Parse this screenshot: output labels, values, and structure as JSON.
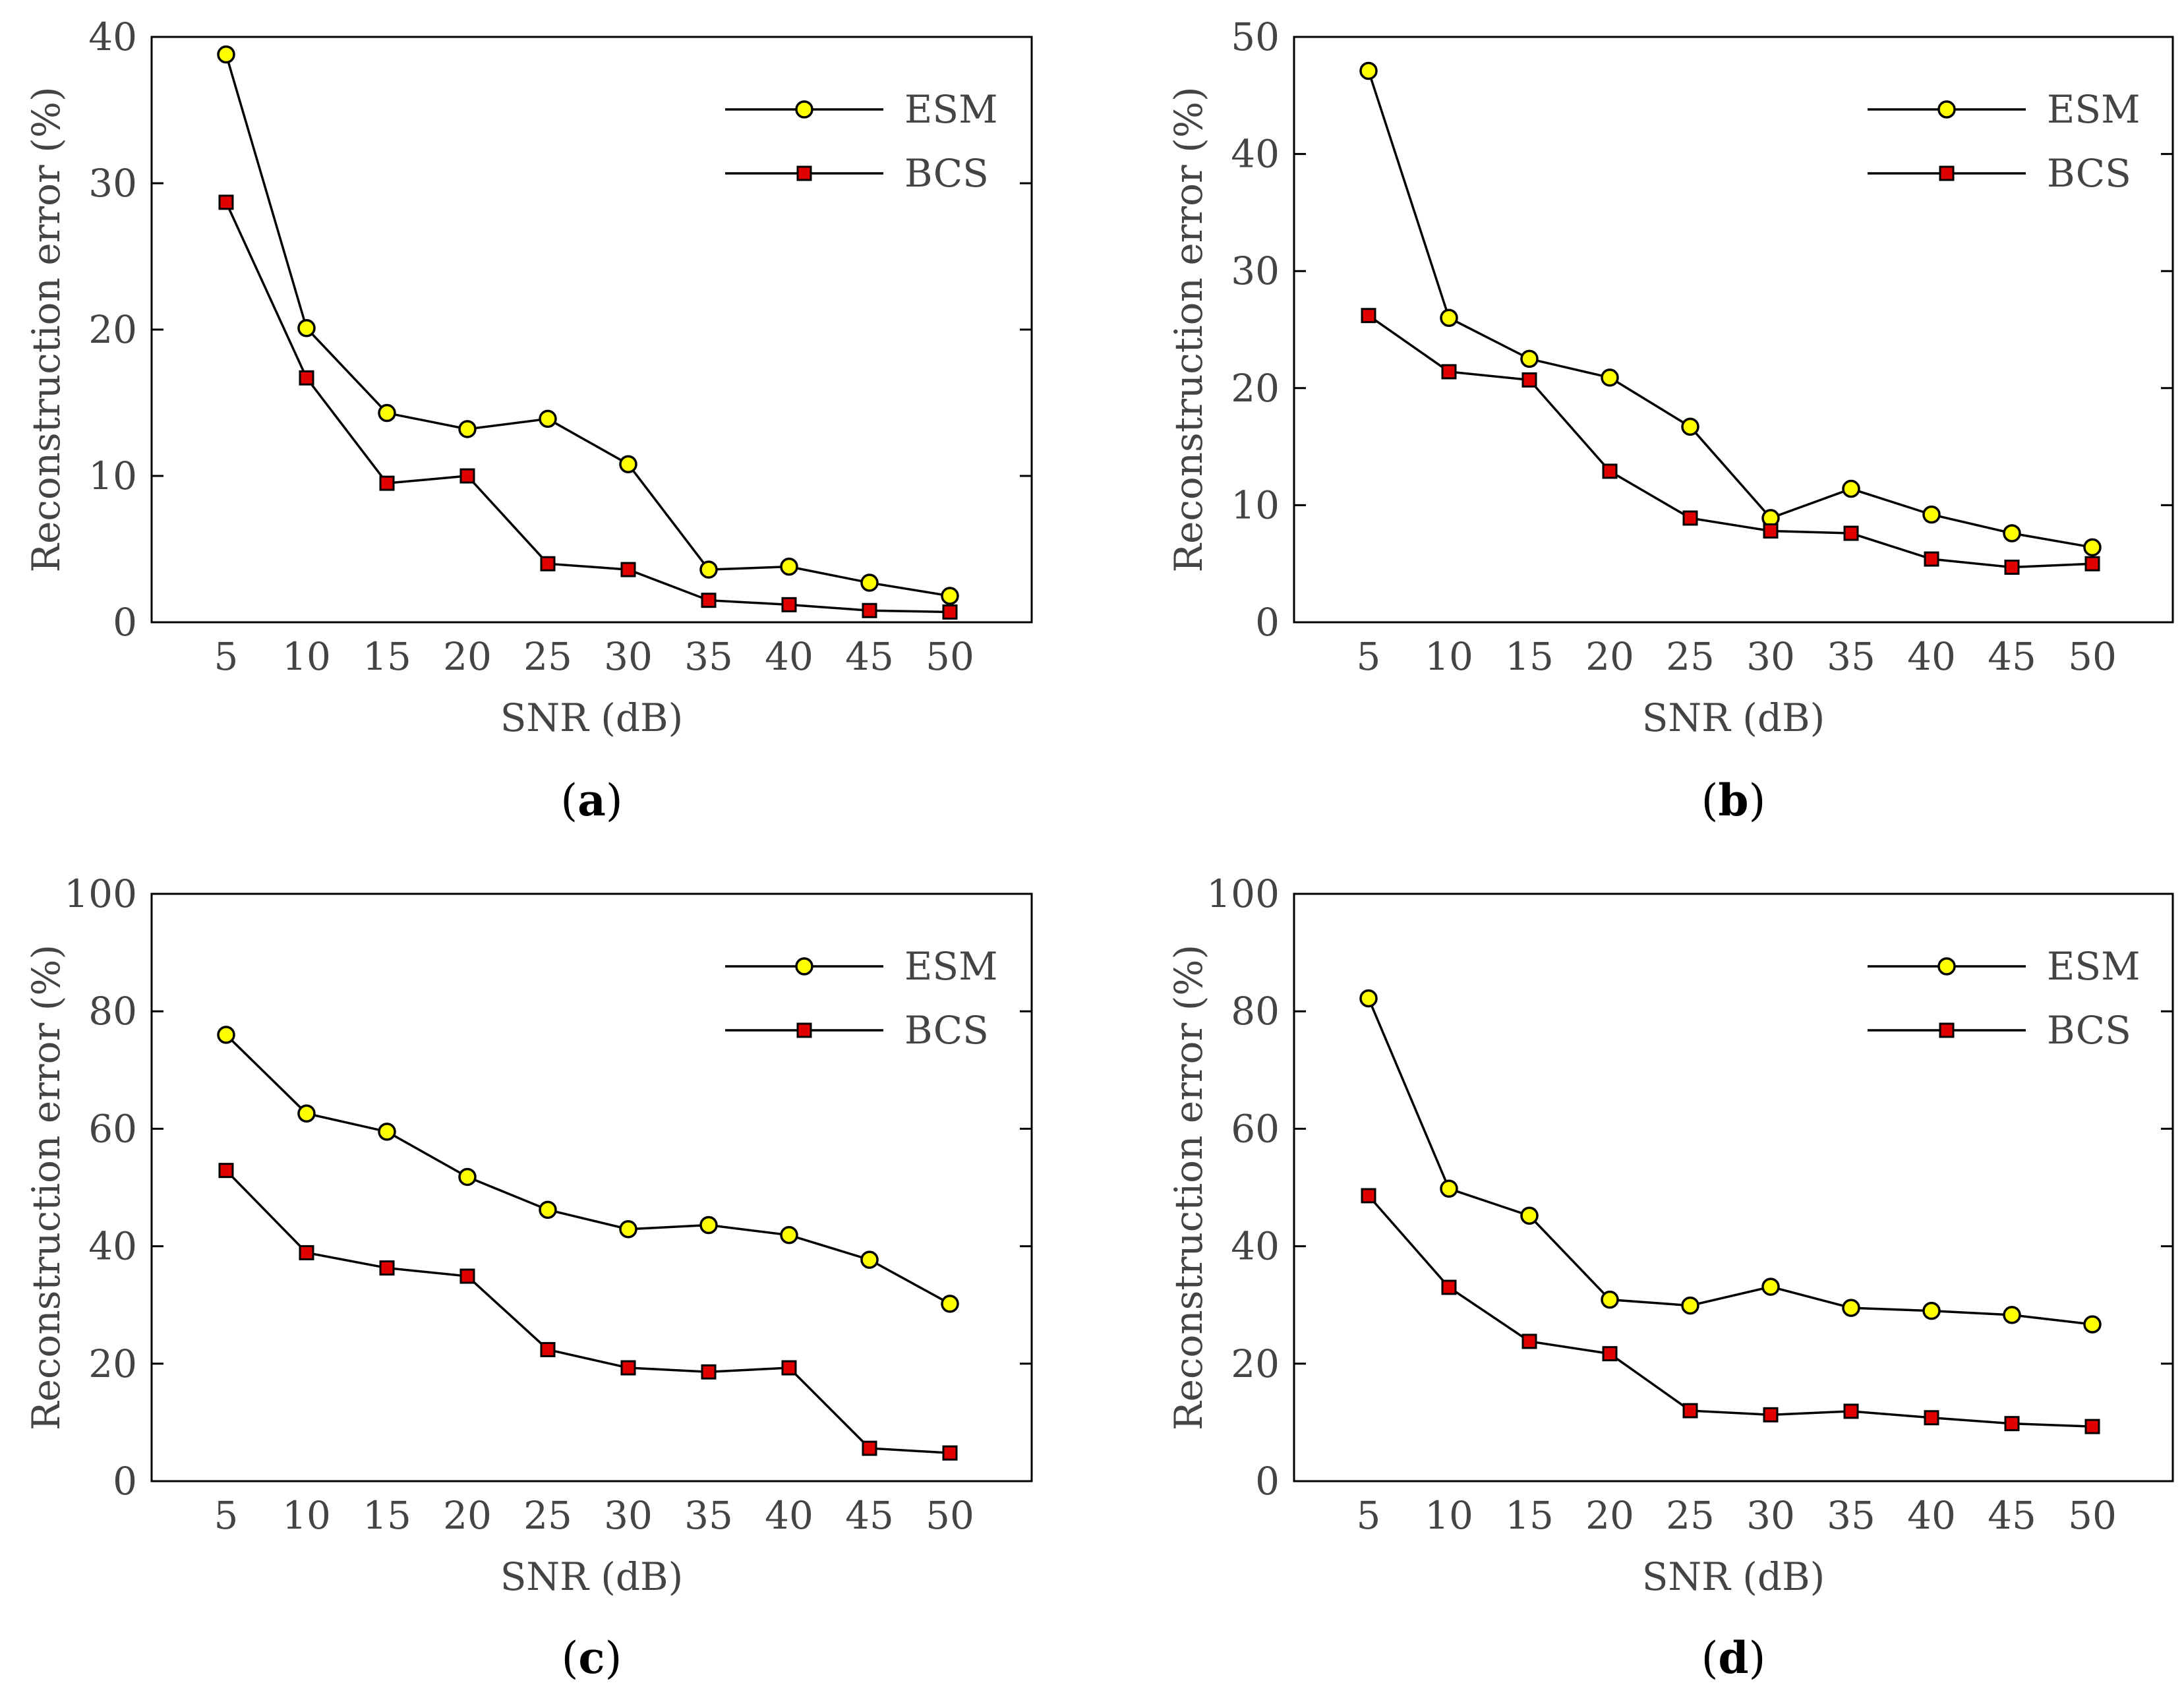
{
  "chart_data": [
    {
      "type": "line",
      "panel_label": "a",
      "x": [
        5,
        10,
        15,
        20,
        25,
        30,
        35,
        40,
        45,
        50
      ],
      "xlabel": "SNR (dB)",
      "ylabel": "Reconstruction error (%)",
      "ylim": [
        0,
        40
      ],
      "yticks": [
        0,
        10,
        20,
        30,
        40
      ],
      "grid": false,
      "legend_position": "top-right",
      "series": [
        {
          "name": "ESM",
          "marker": "circle",
          "color": "#ffff00",
          "values": [
            38.8,
            20.1,
            14.3,
            13.2,
            13.9,
            10.8,
            3.6,
            3.8,
            2.7,
            1.8
          ]
        },
        {
          "name": "BCS",
          "marker": "square",
          "color": "#e00000",
          "values": [
            28.7,
            16.7,
            9.5,
            10.0,
            4.0,
            3.6,
            1.5,
            1.2,
            0.8,
            0.7
          ]
        }
      ]
    },
    {
      "type": "line",
      "panel_label": "b",
      "x": [
        5,
        10,
        15,
        20,
        25,
        30,
        35,
        40,
        45,
        50
      ],
      "xlabel": "SNR (dB)",
      "ylabel": "Reconstruction error (%)",
      "ylim": [
        0,
        50
      ],
      "yticks": [
        0,
        10,
        20,
        30,
        40,
        50
      ],
      "grid": false,
      "legend_position": "top-right",
      "series": [
        {
          "name": "ESM",
          "marker": "circle",
          "color": "#ffff00",
          "values": [
            47.1,
            26.0,
            22.5,
            20.9,
            16.7,
            8.9,
            11.4,
            9.2,
            7.6,
            6.4
          ]
        },
        {
          "name": "BCS",
          "marker": "square",
          "color": "#e00000",
          "values": [
            26.2,
            21.4,
            20.7,
            12.9,
            8.9,
            7.8,
            7.6,
            5.4,
            4.7,
            5.0
          ]
        }
      ]
    },
    {
      "type": "line",
      "panel_label": "c",
      "x": [
        5,
        10,
        15,
        20,
        25,
        30,
        35,
        40,
        45,
        50
      ],
      "xlabel": "SNR (dB)",
      "ylabel": "Reconstruction error (%)",
      "ylim": [
        0,
        100
      ],
      "yticks": [
        0,
        20,
        40,
        60,
        80,
        100
      ],
      "grid": false,
      "legend_position": "top-right",
      "series": [
        {
          "name": "ESM",
          "marker": "circle",
          "color": "#ffff00",
          "values": [
            76.0,
            62.6,
            59.5,
            51.8,
            46.2,
            42.9,
            43.6,
            41.9,
            37.7,
            30.2
          ]
        },
        {
          "name": "BCS",
          "marker": "square",
          "color": "#e00000",
          "values": [
            52.9,
            38.9,
            36.3,
            34.9,
            22.4,
            19.3,
            18.6,
            19.3,
            5.6,
            4.8
          ]
        }
      ]
    },
    {
      "type": "line",
      "panel_label": "d",
      "x": [
        5,
        10,
        15,
        20,
        25,
        30,
        35,
        40,
        45,
        50
      ],
      "xlabel": "SNR (dB)",
      "ylabel": "Reconstruction error (%)",
      "ylim": [
        0,
        100
      ],
      "yticks": [
        0,
        20,
        40,
        60,
        80,
        100
      ],
      "grid": false,
      "legend_position": "top-right",
      "series": [
        {
          "name": "ESM",
          "marker": "circle",
          "color": "#ffff00",
          "values": [
            82.2,
            49.8,
            45.2,
            30.9,
            29.9,
            33.1,
            29.5,
            29.0,
            28.3,
            26.7
          ]
        },
        {
          "name": "BCS",
          "marker": "square",
          "color": "#e00000",
          "values": [
            48.6,
            33.0,
            23.8,
            21.7,
            12.0,
            11.3,
            11.9,
            10.8,
            9.8,
            9.3
          ]
        }
      ]
    }
  ]
}
